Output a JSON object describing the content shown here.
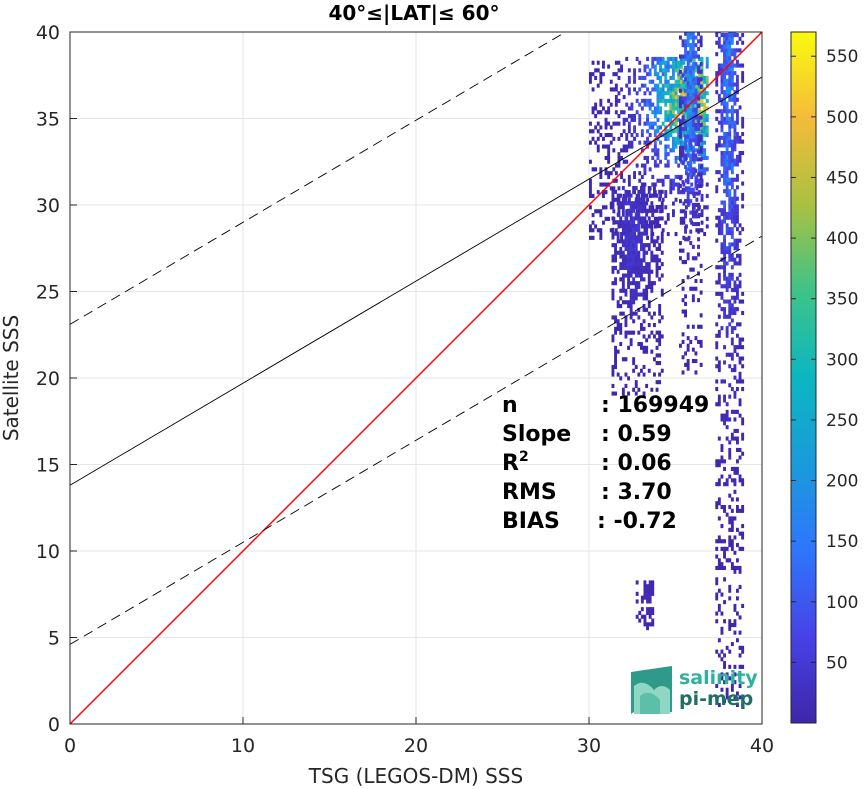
{
  "chart_data": {
    "type": "heatmap",
    "title": "40°≤|LAT|≤ 60°",
    "xlabel": "TSG (LEGOS-DM) SSS",
    "ylabel": "Satellite SSS",
    "xlim": [
      0,
      40
    ],
    "ylim": [
      0,
      40
    ],
    "xticks": [
      0,
      10,
      20,
      30,
      40
    ],
    "yticks": [
      0,
      5,
      10,
      15,
      20,
      25,
      30,
      35,
      40
    ],
    "grid": true,
    "colorbar": {
      "colormap": "parula",
      "range": [
        0,
        570
      ],
      "ticks": [
        50,
        100,
        150,
        200,
        250,
        300,
        350,
        400,
        450,
        500,
        550
      ]
    },
    "density_clusters": [
      {
        "x_range": [
          30,
          36.8
        ],
        "y_range": [
          28,
          38.5
        ],
        "peak_count": 570,
        "peak_at": [
          35.8,
          36
        ]
      },
      {
        "x_range": [
          35.2,
          36.4
        ],
        "y_range": [
          20,
          40
        ],
        "peak_count": 250,
        "peak_at": [
          35.8,
          37
        ]
      },
      {
        "x_range": [
          37.3,
          38.8
        ],
        "y_range": [
          1,
          40
        ],
        "peak_count": 200,
        "peak_at": [
          38,
          37
        ]
      },
      {
        "x_range": [
          31.3,
          34.2
        ],
        "y_range": [
          19,
          31
        ],
        "peak_count": 50,
        "peak_at": [
          32.5,
          28
        ]
      },
      {
        "x_range": [
          32.7,
          33.7
        ],
        "y_range": [
          5,
          8.2
        ],
        "peak_count": 20,
        "peak_at": [
          33.3,
          7
        ]
      }
    ],
    "lines": [
      {
        "name": "identity",
        "color": "#ff0000",
        "style": "solid",
        "x": [
          0,
          40
        ],
        "y": [
          0,
          40
        ]
      },
      {
        "name": "fit",
        "color": "#000000",
        "style": "solid",
        "x": [
          0,
          40
        ],
        "y": [
          13.8,
          37.4
        ]
      },
      {
        "name": "fit+",
        "color": "#000000",
        "style": "dashed",
        "x": [
          0,
          40
        ],
        "y": [
          23.1,
          46.7
        ]
      },
      {
        "name": "fit-",
        "color": "#000000",
        "style": "dashed",
        "x": [
          0,
          40
        ],
        "y": [
          4.6,
          28.2
        ]
      }
    ],
    "stats": [
      {
        "label": "n",
        "value": ": 169949"
      },
      {
        "label": "Slope",
        "value": ": 0.59"
      },
      {
        "label": "R",
        "sup": "2",
        "value": ": 0.06"
      },
      {
        "label": "RMS",
        "value": ": 3.70"
      },
      {
        "label": "BIAS",
        "value": ": -0.72"
      }
    ]
  },
  "logo": {
    "line1": "salinity",
    "line2": "pi-mep"
  }
}
